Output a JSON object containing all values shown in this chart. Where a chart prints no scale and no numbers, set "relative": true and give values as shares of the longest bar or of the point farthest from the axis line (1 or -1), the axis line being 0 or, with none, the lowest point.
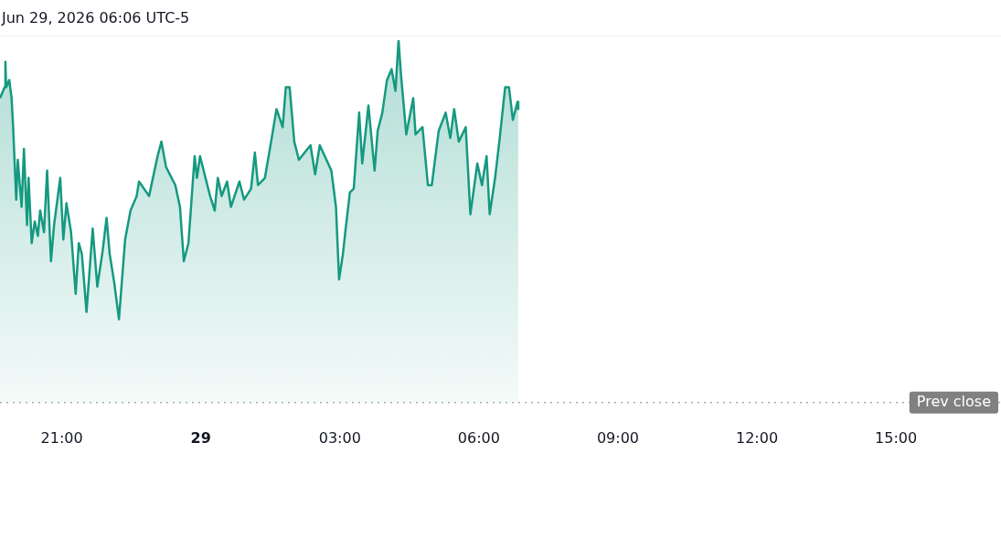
{
  "chart_data": {
    "type": "area",
    "relative": true,
    "annotations": [
      "Jun 29, 2026 06:06 UTC-5"
    ],
    "xlim": [
      "2026-06-28T19:40",
      "2026-06-29T17:16"
    ],
    "xticks": [
      {
        "value": "2026-06-28T21:00",
        "label": "21:00"
      },
      {
        "value": "2026-06-29T00:00",
        "label": "29"
      },
      {
        "value": "2026-06-29T03:00",
        "label": "03:00"
      },
      {
        "value": "2026-06-29T06:00",
        "label": "06:00"
      },
      {
        "value": "2026-06-29T09:00",
        "label": "09:00"
      },
      {
        "value": "2026-06-29T12:00",
        "label": "12:00"
      },
      {
        "value": "2026-06-29T15:00",
        "label": "15:00"
      }
    ],
    "grid": false,
    "legend": false,
    "marker": "none",
    "ref_lines": [
      {
        "axis": "y",
        "value": 0,
        "label": "Prev close",
        "color": "#808080",
        "line_style": "dotted"
      }
    ],
    "series": [
      {
        "color": "#159980",
        "x": [
          "2026-06-28T19:40",
          "2026-06-28T19:46",
          "2026-06-28T19:47",
          "2026-06-28T19:48",
          "2026-06-28T19:52",
          "2026-06-28T19:55",
          "2026-06-28T19:57",
          "2026-06-28T20:01",
          "2026-06-28T20:03",
          "2026-06-28T20:08",
          "2026-06-28T20:11",
          "2026-06-28T20:15",
          "2026-06-28T20:17",
          "2026-06-28T20:21",
          "2026-06-28T20:25",
          "2026-06-28T20:29",
          "2026-06-28T20:32",
          "2026-06-28T20:37",
          "2026-06-28T20:41",
          "2026-06-28T20:46",
          "2026-06-28T20:50",
          "2026-06-28T20:58",
          "2026-06-28T21:02",
          "2026-06-28T21:06",
          "2026-06-28T21:12",
          "2026-06-28T21:18",
          "2026-06-28T21:22",
          "2026-06-28T21:26",
          "2026-06-28T21:32",
          "2026-06-28T21:40",
          "2026-06-28T21:46",
          "2026-06-28T21:53",
          "2026-06-28T21:58",
          "2026-06-28T22:02",
          "2026-06-28T22:08",
          "2026-06-28T22:14",
          "2026-06-28T22:22",
          "2026-06-28T22:29",
          "2026-06-28T22:37",
          "2026-06-28T22:40",
          "2026-06-28T22:53",
          "2026-06-28T23:04",
          "2026-06-28T23:09",
          "2026-06-28T23:15",
          "2026-06-28T23:27",
          "2026-06-28T23:33",
          "2026-06-28T23:38",
          "2026-06-28T23:44",
          "2026-06-28T23:52",
          "2026-06-28T23:55",
          "2026-06-28T23:59",
          "2026-06-29T00:12",
          "2026-06-29T00:18",
          "2026-06-29T00:22",
          "2026-06-29T00:27",
          "2026-06-29T00:34",
          "2026-06-29T00:39",
          "2026-06-29T00:50",
          "2026-06-29T00:56",
          "2026-06-29T01:05",
          "2026-06-29T01:10",
          "2026-06-29T01:14",
          "2026-06-29T01:23",
          "2026-06-29T01:31",
          "2026-06-29T01:38",
          "2026-06-29T01:46",
          "2026-06-29T01:50",
          "2026-06-29T01:55",
          "2026-06-29T02:01",
          "2026-06-29T02:07",
          "2026-06-29T02:22",
          "2026-06-29T02:28",
          "2026-06-29T02:34",
          "2026-06-29T02:49",
          "2026-06-29T02:55",
          "2026-06-29T02:59",
          "2026-06-29T03:04",
          "2026-06-29T03:07",
          "2026-06-29T03:13",
          "2026-06-29T03:18",
          "2026-06-29T03:25",
          "2026-06-29T03:29",
          "2026-06-29T03:37",
          "2026-06-29T03:45",
          "2026-06-29T03:49",
          "2026-06-29T03:55",
          "2026-06-29T04:01",
          "2026-06-29T04:07",
          "2026-06-29T04:12",
          "2026-06-29T04:16",
          "2026-06-29T04:19",
          "2026-06-29T04:26",
          "2026-06-29T04:35",
          "2026-06-29T04:38",
          "2026-06-29T04:47",
          "2026-06-29T04:54",
          "2026-06-29T04:59",
          "2026-06-29T05:08",
          "2026-06-29T05:17",
          "2026-06-29T05:23",
          "2026-06-29T05:28",
          "2026-06-29T05:34",
          "2026-06-29T05:43",
          "2026-06-29T05:49",
          "2026-06-29T05:58",
          "2026-06-29T06:04",
          "2026-06-29T06:10",
          "2026-06-29T06:14",
          "2026-06-29T06:21",
          "2026-06-29T06:27",
          "2026-06-29T06:34",
          "2026-06-29T06:39",
          "2026-06-29T06:44",
          "2026-06-29T06:50",
          "2026-06-29T06:51"
        ],
        "values": [
          0.84,
          0.87,
          0.94,
          0.87,
          0.89,
          0.84,
          0.76,
          0.56,
          0.67,
          0.54,
          0.7,
          0.49,
          0.62,
          0.44,
          0.5,
          0.46,
          0.53,
          0.47,
          0.64,
          0.39,
          0.49,
          0.62,
          0.45,
          0.55,
          0.47,
          0.3,
          0.44,
          0.41,
          0.25,
          0.48,
          0.32,
          0.42,
          0.51,
          0.41,
          0.33,
          0.23,
          0.45,
          0.53,
          0.57,
          0.61,
          0.57,
          0.68,
          0.72,
          0.65,
          0.6,
          0.54,
          0.39,
          0.44,
          0.68,
          0.62,
          0.68,
          0.57,
          0.53,
          0.62,
          0.57,
          0.61,
          0.54,
          0.61,
          0.56,
          0.59,
          0.69,
          0.6,
          0.62,
          0.72,
          0.81,
          0.76,
          0.87,
          0.87,
          0.72,
          0.67,
          0.71,
          0.63,
          0.71,
          0.64,
          0.54,
          0.34,
          0.41,
          0.47,
          0.58,
          0.59,
          0.8,
          0.66,
          0.82,
          0.64,
          0.75,
          0.8,
          0.89,
          0.92,
          0.86,
          1.0,
          0.91,
          0.74,
          0.84,
          0.74,
          0.76,
          0.6,
          0.6,
          0.75,
          0.8,
          0.73,
          0.81,
          0.72,
          0.76,
          0.52,
          0.66,
          0.6,
          0.68,
          0.52,
          0.62,
          0.73,
          0.87,
          0.87,
          0.78,
          0.83,
          0.81
        ]
      }
    ]
  }
}
